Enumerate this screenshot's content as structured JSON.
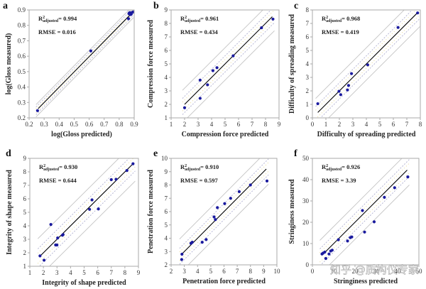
{
  "chart_data": [
    {
      "type": "scatter",
      "panel": "a",
      "xlabel": "log(Gloss predicted)",
      "ylabel": "log(Gloss measured)",
      "xlim": [
        0.2,
        0.9
      ],
      "ylim": [
        0.2,
        0.9
      ],
      "xticks": [
        "0.2",
        "0.3",
        "0.4",
        "0.5",
        "0.6",
        "0.7",
        "0.8",
        "0.9"
      ],
      "yticks": [
        "0.2",
        "0.3",
        "0.4",
        "0.5",
        "0.6",
        "0.7",
        "0.8",
        "0.9"
      ],
      "r2_label": "R",
      "r2_sup": "2",
      "r2_sub": "adjusted",
      "r2_value": "= 0.994",
      "rmse_text": "RMSE = 0.016",
      "fit_line": [
        [
          0.26,
          0.26
        ],
        [
          0.88,
          0.875
        ]
      ],
      "confidence_offset": 0.025,
      "prediction_offset": 0.04,
      "x": [
        0.256,
        0.611,
        0.862,
        0.866,
        0.87,
        0.874,
        0.878,
        0.868,
        0.88,
        0.886,
        0.893,
        0.865
      ],
      "y": [
        0.247,
        0.634,
        0.843,
        0.878,
        0.882,
        0.87,
        0.875,
        0.88,
        0.872,
        0.884,
        0.887,
        0.876
      ]
    },
    {
      "type": "scatter",
      "panel": "b",
      "xlabel": "Compression force predicted",
      "ylabel": "Compression force measured",
      "xlim": [
        1,
        9
      ],
      "ylim": [
        1,
        9
      ],
      "xticks": [
        "1",
        "2",
        "3",
        "4",
        "5",
        "6",
        "7",
        "8",
        "9"
      ],
      "yticks": [
        "1",
        "2",
        "3",
        "4",
        "5",
        "6",
        "7",
        "8",
        "9"
      ],
      "r2_label": "R",
      "r2_sup": "2",
      "r2_sub": "adjusted",
      "r2_value": "= 0.961",
      "rmse_text": "RMSE = 0.434",
      "fit_line": [
        [
          2.0,
          2.0
        ],
        [
          8.5,
          8.5
        ]
      ],
      "confidence_offset": 0.6,
      "prediction_offset": 1.2,
      "x": [
        2.0,
        3.15,
        3.15,
        3.7,
        4.1,
        4.4,
        5.6,
        7.7,
        8.55
      ],
      "y": [
        1.75,
        3.8,
        2.45,
        3.45,
        4.5,
        4.72,
        5.6,
        7.68,
        8.32
      ]
    },
    {
      "type": "scatter",
      "panel": "c",
      "xlabel": "Difficulty of spreading predicted",
      "ylabel": "Difficulty of spreading measured",
      "xlim": [
        0,
        8
      ],
      "ylim": [
        0,
        8
      ],
      "xticks": [
        "0",
        "1",
        "2",
        "3",
        "4",
        "5",
        "6",
        "7",
        "8"
      ],
      "yticks": [
        "0",
        "1",
        "2",
        "3",
        "4",
        "5",
        "6",
        "7",
        "8"
      ],
      "r2_label": "R",
      "r2_sup": "2",
      "r2_sub": "adjusted",
      "r2_value": "= 0.968",
      "rmse_text": "RMSE = 0.419",
      "fit_line": [
        [
          0.4,
          0.4
        ],
        [
          7.8,
          7.8
        ]
      ],
      "confidence_offset": 0.6,
      "prediction_offset": 1.2,
      "x": [
        0.4,
        1.97,
        2.1,
        2.6,
        2.68,
        2.9,
        4.1,
        6.35,
        7.8
      ],
      "y": [
        1.05,
        1.97,
        1.72,
        2.07,
        2.4,
        3.28,
        3.93,
        6.7,
        7.78
      ]
    },
    {
      "type": "scatter",
      "panel": "d",
      "xlabel": "Integrity of shape predicted",
      "ylabel": "Integrity of shape measured",
      "xlim": [
        1,
        9
      ],
      "ylim": [
        1,
        9
      ],
      "xticks": [
        "1",
        "2",
        "3",
        "4",
        "5",
        "6",
        "7",
        "8",
        "9"
      ],
      "yticks": [
        "1",
        "2",
        "3",
        "4",
        "5",
        "6",
        "7",
        "8",
        "9"
      ],
      "r2_label": "R",
      "r2_sup": "2",
      "r2_sub": "adjusted",
      "r2_value": "= 0.930",
      "rmse_text": "RMSE = 0.644",
      "fit_line": [
        [
          1.75,
          1.75
        ],
        [
          8.6,
          8.6
        ]
      ],
      "confidence_offset": 0.7,
      "prediction_offset": 1.45,
      "x": [
        1.75,
        2.05,
        2.55,
        2.9,
        3.0,
        3.05,
        3.4,
        3.45,
        5.4,
        5.58,
        6.05,
        7.0,
        7.35,
        8.15,
        8.6
      ],
      "y": [
        1.77,
        1.45,
        4.1,
        2.58,
        2.58,
        3.1,
        3.3,
        3.35,
        5.22,
        5.92,
        5.25,
        7.42,
        7.45,
        8.1,
        8.6
      ]
    },
    {
      "type": "scatter",
      "panel": "e",
      "xlabel": "Penetration force predicted",
      "ylabel": "Penetration force measured",
      "xlim": [
        2,
        10
      ],
      "ylim": [
        2,
        10
      ],
      "xticks": [
        "2",
        "3",
        "4",
        "5",
        "6",
        "7",
        "8",
        "9",
        "10"
      ],
      "yticks": [
        "2",
        "3",
        "4",
        "5",
        "6",
        "7",
        "8",
        "9",
        "10"
      ],
      "r2_label": "R",
      "r2_sup": "2",
      "r2_sub": "adjusted",
      "r2_value": "= 0.910",
      "rmse_text": "RMSE = 0.597",
      "fit_line": [
        [
          2.8,
          2.8
        ],
        [
          9.2,
          9.2
        ]
      ],
      "confidence_offset": 0.6,
      "prediction_offset": 1.3,
      "x": [
        2.8,
        2.82,
        3.5,
        3.6,
        4.35,
        4.65,
        5.25,
        5.35,
        5.5,
        6.05,
        6.5,
        7.15,
        8.0,
        9.25
      ],
      "y": [
        2.4,
        2.8,
        3.62,
        3.7,
        3.7,
        3.9,
        5.6,
        5.4,
        6.3,
        6.6,
        7.0,
        7.5,
        8.0,
        8.3
      ]
    },
    {
      "type": "scatter",
      "panel": "f",
      "xlabel": "Stringiness predicted",
      "ylabel": "Stringiness measured",
      "xlim": [
        0,
        50
      ],
      "ylim": [
        0,
        50
      ],
      "xticks": [
        "0",
        "10",
        "20",
        "30",
        "40",
        "50"
      ],
      "yticks": [
        "0",
        "10",
        "20",
        "30",
        "40",
        "50"
      ],
      "r2_label": "R",
      "r2_sup": "2",
      "r2_sub": "adjusted",
      "r2_value": "= 0.926",
      "rmse_text": "RMSE = 3.39",
      "fit_line": [
        [
          4.5,
          4.5
        ],
        [
          44.5,
          44.5
        ]
      ],
      "confidence_offset": 4.0,
      "prediction_offset": 8.0,
      "x": [
        4.5,
        5.0,
        5.8,
        6.3,
        7.8,
        8.6,
        9.3,
        12.2,
        16.5,
        17.8,
        18.5,
        23.5,
        24.5,
        29.0,
        33.8,
        38.6,
        44.8
      ],
      "y": [
        5.1,
        5.5,
        6.0,
        3.0,
        5.1,
        6.5,
        6.9,
        11.8,
        11.2,
        12.8,
        13.1,
        25.5,
        15.4,
        20.2,
        31.7,
        36.2,
        41.3
      ]
    }
  ],
  "colors": {
    "point": "#1a1a9e",
    "fit_line": "#000000",
    "confidence_band": "#b0b0d0",
    "confidence_band_alt": "#e6d58a",
    "prediction_band": "#c4c4c4",
    "frame": "#aaaaaa"
  },
  "watermark": "知乎 @质构仪专家"
}
